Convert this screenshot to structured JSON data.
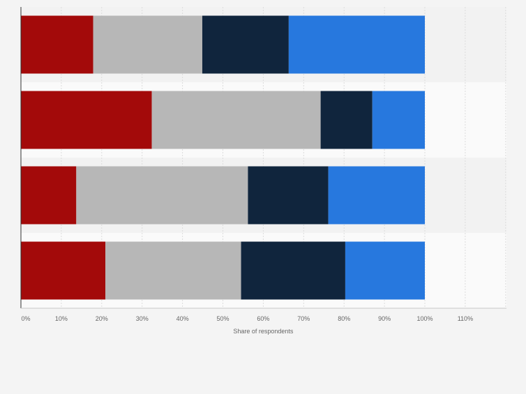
{
  "chart_data": {
    "type": "bar",
    "orientation": "horizontal",
    "stacked": true,
    "categories": [
      "",
      "",
      "",
      ""
    ],
    "series": [
      {
        "color": "#a30a0a",
        "values": [
          17.9,
          32.4,
          13.7,
          20.9
        ]
      },
      {
        "color": "#b7b7b7",
        "values": [
          27.0,
          41.8,
          42.5,
          33.6
        ]
      },
      {
        "color": "#10253d",
        "values": [
          21.4,
          12.8,
          19.9,
          25.8
        ]
      },
      {
        "color": "#2778de",
        "values": [
          33.7,
          13.0,
          23.9,
          19.7
        ]
      }
    ],
    "xlabel": "Share of respondents",
    "ylabel": "",
    "xlim": [
      0,
      120
    ],
    "xticks": [
      "0%",
      "10%",
      "20%",
      "30%",
      "40%",
      "50%",
      "60%",
      "70%",
      "80%",
      "90%",
      "100%",
      "110%"
    ],
    "grid": true,
    "legend": "none"
  }
}
